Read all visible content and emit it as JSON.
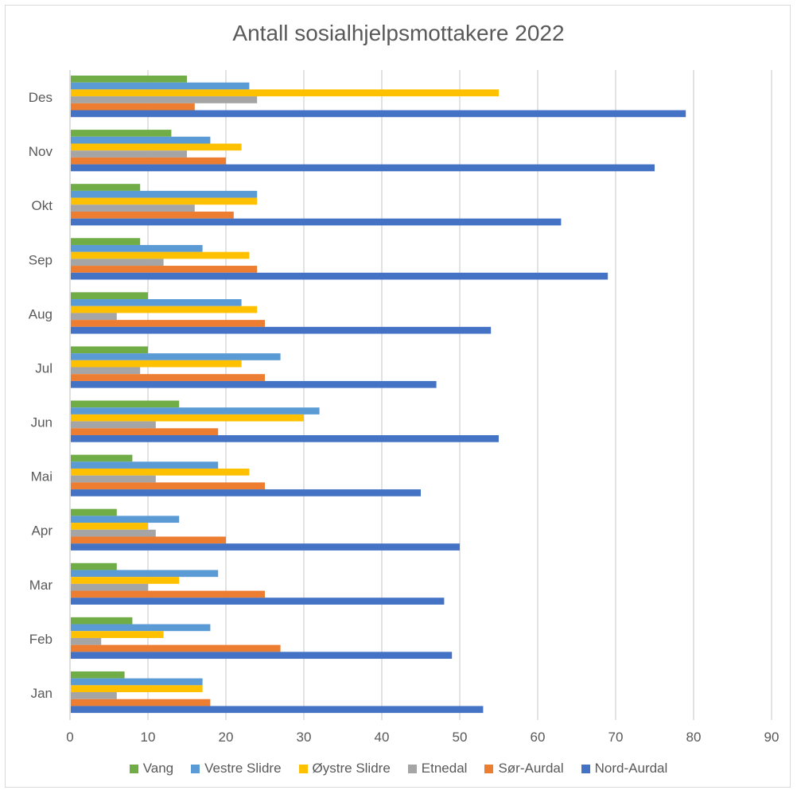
{
  "chart_data": {
    "type": "bar",
    "orientation": "horizontal",
    "title": "Antall sosialhjelpsmottakere 2022",
    "xlabel": "",
    "ylabel": "",
    "categories": [
      "Jan",
      "Feb",
      "Mar",
      "Apr",
      "Mai",
      "Jun",
      "Jul",
      "Aug",
      "Sep",
      "Okt",
      "Nov",
      "Des"
    ],
    "xlim": [
      0,
      90
    ],
    "x_ticks": [
      0,
      10,
      20,
      30,
      40,
      50,
      60,
      70,
      80,
      90
    ],
    "grid": true,
    "legend_position": "bottom",
    "series": [
      {
        "name": "Vang",
        "color": "#70ad47",
        "values": [
          7,
          8,
          6,
          6,
          8,
          14,
          10,
          10,
          9,
          9,
          13,
          15
        ]
      },
      {
        "name": "Vestre Slidre",
        "color": "#5b9bd5",
        "values": [
          17,
          18,
          19,
          14,
          19,
          32,
          27,
          22,
          17,
          24,
          18,
          23
        ]
      },
      {
        "name": "Øystre Slidre",
        "color": "#ffc000",
        "values": [
          17,
          12,
          14,
          10,
          23,
          30,
          22,
          24,
          23,
          24,
          22,
          55
        ]
      },
      {
        "name": "Etnedal",
        "color": "#a5a5a5",
        "values": [
          6,
          4,
          10,
          11,
          11,
          11,
          9,
          6,
          12,
          16,
          15,
          24
        ]
      },
      {
        "name": "Sør-Aurdal",
        "color": "#ed7d31",
        "values": [
          18,
          27,
          25,
          20,
          25,
          19,
          25,
          25,
          24,
          21,
          20,
          16
        ]
      },
      {
        "name": "Nord-Aurdal",
        "color": "#4472c4",
        "values": [
          53,
          49,
          48,
          50,
          45,
          55,
          47,
          54,
          69,
          63,
          75,
          79
        ]
      }
    ]
  }
}
